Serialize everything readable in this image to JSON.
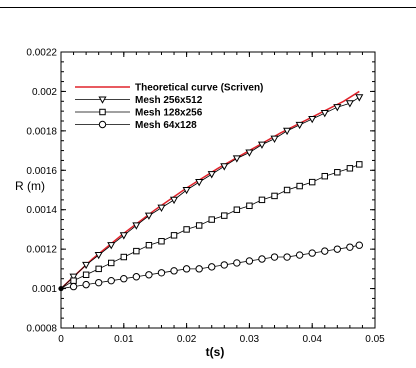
{
  "chart_data": {
    "type": "line",
    "title": "",
    "xlabel": "t(s)",
    "ylabel": "R (m)",
    "xlim": [
      0,
      0.05
    ],
    "ylim": [
      0.0008,
      0.0022
    ],
    "xticks": [
      0,
      0.01,
      0.02,
      0.03,
      0.04,
      0.05
    ],
    "xtick_labels": [
      "0",
      "0.01",
      "0.02",
      "0.03",
      "0.04",
      "0.05"
    ],
    "yticks": [
      0.0008,
      0.001,
      0.0012,
      0.0014,
      0.0016,
      0.0018,
      0.002,
      0.0022
    ],
    "ytick_labels": [
      "0.0008",
      "0.001",
      "0.0012",
      "0.0014",
      "0.0016",
      "0.0018",
      "0.002",
      "0.0022"
    ],
    "grid": false,
    "legend_position": "top-left",
    "series": [
      {
        "name": "Theoretical curve (Scriven)",
        "style": "line",
        "color": "#e0242c",
        "x": [
          0,
          0.005,
          0.01,
          0.015,
          0.02,
          0.025,
          0.03,
          0.035,
          0.04,
          0.045,
          0.0475
        ],
        "values": [
          0.001,
          0.00115,
          0.00128,
          0.0014,
          0.00151,
          0.00161,
          0.0017,
          0.00179,
          0.00187,
          0.00195,
          0.002
        ]
      },
      {
        "name": "Mesh 256x512",
        "style": "line-marker",
        "marker": "triangle-down",
        "color": "#000000",
        "x": [
          0,
          0.002,
          0.004,
          0.006,
          0.008,
          0.01,
          0.012,
          0.014,
          0.016,
          0.018,
          0.02,
          0.022,
          0.024,
          0.026,
          0.028,
          0.03,
          0.032,
          0.034,
          0.036,
          0.038,
          0.04,
          0.042,
          0.044,
          0.046,
          0.0475
        ],
        "values": [
          0.001,
          0.00106,
          0.00112,
          0.00117,
          0.00122,
          0.00127,
          0.00132,
          0.00137,
          0.00141,
          0.00145,
          0.0015,
          0.00154,
          0.00158,
          0.00162,
          0.00166,
          0.00169,
          0.00173,
          0.00176,
          0.0018,
          0.00183,
          0.00186,
          0.00189,
          0.00192,
          0.00194,
          0.00197
        ]
      },
      {
        "name": "Mesh 128x256",
        "style": "line-marker",
        "marker": "square",
        "color": "#000000",
        "x": [
          0,
          0.002,
          0.004,
          0.006,
          0.008,
          0.01,
          0.012,
          0.014,
          0.016,
          0.018,
          0.02,
          0.022,
          0.024,
          0.026,
          0.028,
          0.03,
          0.032,
          0.034,
          0.036,
          0.038,
          0.04,
          0.042,
          0.044,
          0.046,
          0.0475
        ],
        "values": [
          0.001,
          0.00104,
          0.00107,
          0.0011,
          0.00113,
          0.00116,
          0.00119,
          0.00122,
          0.00124,
          0.00127,
          0.0013,
          0.00132,
          0.00135,
          0.00137,
          0.0014,
          0.00142,
          0.00145,
          0.00147,
          0.0015,
          0.00152,
          0.00154,
          0.00157,
          0.00159,
          0.00161,
          0.00163
        ]
      },
      {
        "name": "Mesh 64x128",
        "style": "line-marker",
        "marker": "circle",
        "color": "#000000",
        "x": [
          0,
          0.002,
          0.004,
          0.006,
          0.008,
          0.01,
          0.012,
          0.014,
          0.016,
          0.018,
          0.02,
          0.022,
          0.024,
          0.026,
          0.028,
          0.03,
          0.032,
          0.034,
          0.036,
          0.038,
          0.04,
          0.042,
          0.044,
          0.046,
          0.0475
        ],
        "values": [
          0.001,
          0.00101,
          0.00102,
          0.00103,
          0.00104,
          0.00105,
          0.00106,
          0.00107,
          0.00108,
          0.00109,
          0.0011,
          0.0011,
          0.00111,
          0.00112,
          0.00113,
          0.00114,
          0.00115,
          0.00116,
          0.00116,
          0.00117,
          0.00118,
          0.00119,
          0.0012,
          0.00121,
          0.00122
        ]
      }
    ]
  }
}
